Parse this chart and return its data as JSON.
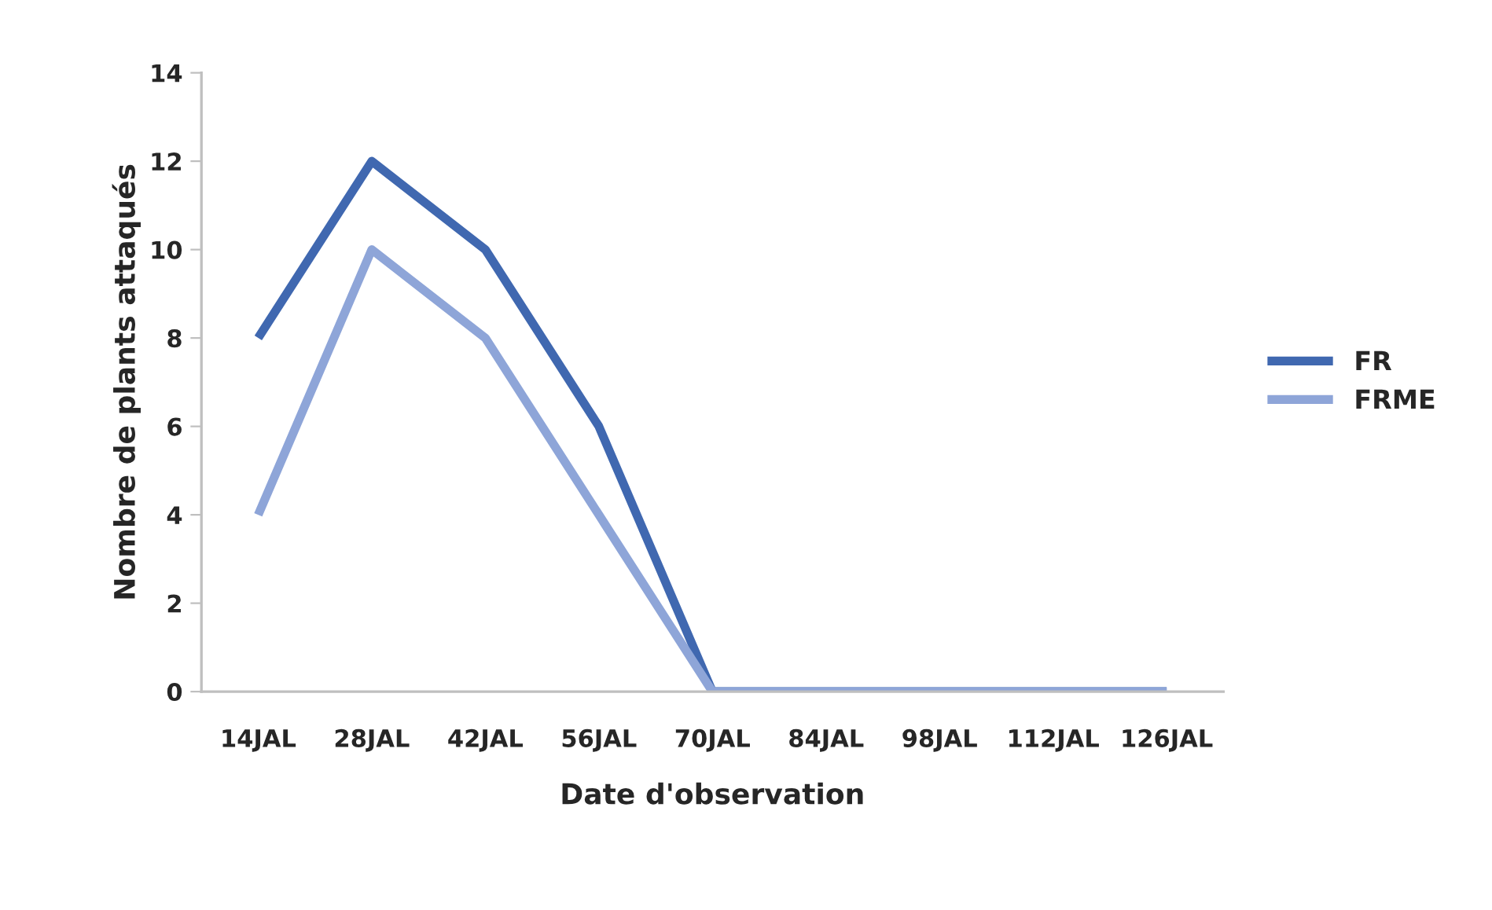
{
  "chart_data": {
    "type": "line",
    "xlabel": "Date d'observation",
    "ylabel": "Nombre de plants attaqués",
    "categories": [
      "14JAL",
      "28JAL",
      "42JAL",
      "56JAL",
      "70JAL",
      "84JAL",
      "98JAL",
      "112JAL",
      "126JAL"
    ],
    "series": [
      {
        "name": "FR",
        "color": "#4068b0",
        "values": [
          8,
          12,
          10,
          6,
          0,
          0,
          0,
          0,
          0
        ]
      },
      {
        "name": "FRME",
        "color": "#8ea5d8",
        "values": [
          4,
          10,
          8,
          4,
          0,
          0,
          0,
          0,
          0
        ]
      }
    ],
    "ylim": [
      0,
      14
    ],
    "yticks": [
      0,
      2,
      4,
      6,
      8,
      10,
      12,
      14
    ],
    "grid": false,
    "legend": "right",
    "marker": "none",
    "line_style": "solid"
  }
}
